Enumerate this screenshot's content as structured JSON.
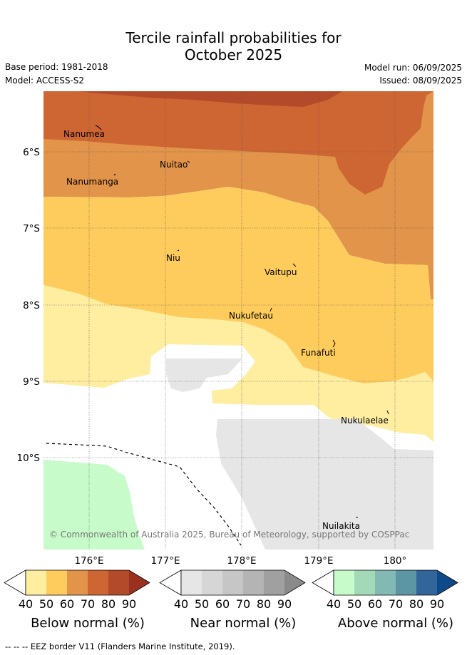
{
  "title": {
    "line1": "Tercile rainfall probabilities for",
    "line2": "October 2025"
  },
  "meta": {
    "base_period": "Base period: 1981-2018",
    "model": "Model: ACCESS-S2",
    "model_run": "Model run: 06/09/2025",
    "issued": "Issued: 08/09/2025"
  },
  "map": {
    "lat_labels": [
      "6°S",
      "7°S",
      "8°S",
      "9°S",
      "10°S"
    ],
    "lon_labels": [
      "176°E",
      "177°E",
      "178°E",
      "179°E",
      "180°"
    ],
    "places": [
      "Nanumea",
      "Nuitao",
      "Nanumanga",
      "Niu",
      "Vaitupu",
      "Nukufetau",
      "Funafuti",
      "Nukulaelae",
      "Nuilakita"
    ],
    "copyright": "© Commonwealth of Australia 2025, Bureau of Meteorology, supported by COSPPac"
  },
  "colorbars": [
    {
      "label": "Below normal (%)",
      "ticks": [
        "40",
        "50",
        "60",
        "70",
        "80",
        "90"
      ],
      "colors": [
        "#ffeda0",
        "#fecc5c",
        "#e1944a",
        "#ce6633",
        "#b34a29",
        "#993020"
      ]
    },
    {
      "label": "Near normal (%)",
      "ticks": [
        "40",
        "50",
        "60",
        "70",
        "80",
        "90"
      ],
      "colors": [
        "#e6e6e6",
        "#d6d6d6",
        "#c6c6c6",
        "#b4b4b4",
        "#a0a0a0",
        "#8a8a8a"
      ]
    },
    {
      "label": "Above normal (%)",
      "ticks": [
        "40",
        "50",
        "60",
        "70",
        "80",
        "90"
      ],
      "colors": [
        "#c7fcca",
        "#a4d9b8",
        "#82b9b3",
        "#5c95a3",
        "#32659a",
        "#0f4a88"
      ]
    }
  ],
  "footer": "--  --  -- EEZ border V11 (Flanders Marine Institute, 2019)."
}
